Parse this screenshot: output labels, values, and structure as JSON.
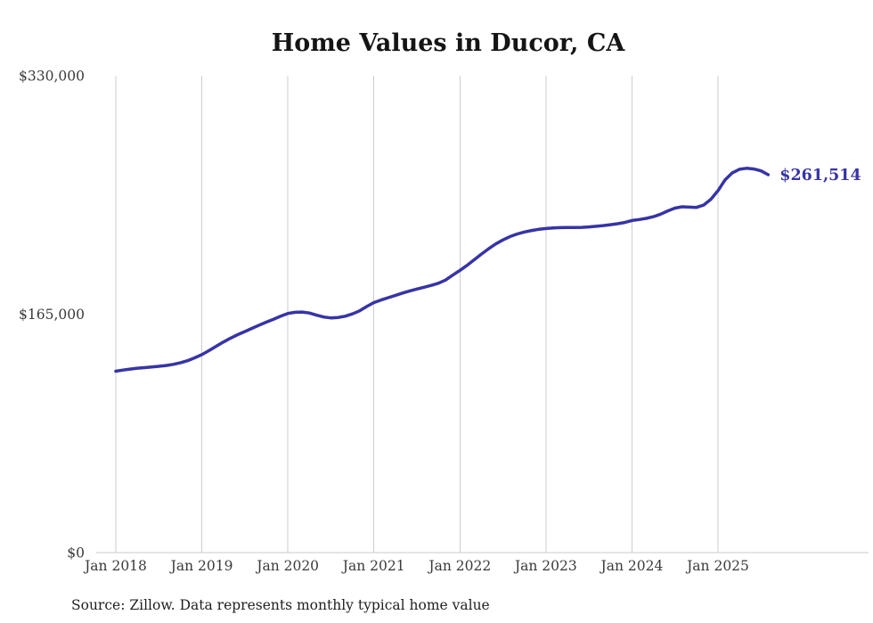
{
  "title": "Home Values in Ducor, CA",
  "source_note": "Source: Zillow. Data represents monthly typical home value",
  "chart_data": {
    "type": "line",
    "title": "Home Values in Ducor, CA",
    "xlabel": "",
    "ylabel": "",
    "ylim": [
      0,
      330000
    ],
    "y_ticks": [
      0,
      165000,
      330000
    ],
    "y_tick_labels": [
      "$0",
      "$165,000",
      "$330,000"
    ],
    "x_tick_labels": [
      "Jan 2018",
      "Jan 2019",
      "Jan 2020",
      "Jan 2021",
      "Jan 2022",
      "Jan 2023",
      "Jan 2024",
      "Jan 2025"
    ],
    "x_tick_month_indices": [
      0,
      12,
      24,
      36,
      48,
      60,
      72,
      84
    ],
    "grid": "vertical-only",
    "legend": "none",
    "line_color": "#3734a6",
    "annotation": {
      "text": "$261,514",
      "value": 261514,
      "position": "line-end"
    },
    "series": [
      {
        "name": "Monthly typical home value",
        "x_start": "2018-01",
        "frequency": "monthly",
        "values": [
          125500,
          126300,
          127000,
          127600,
          128000,
          128400,
          128900,
          129500,
          130300,
          131300,
          132800,
          134800,
          137000,
          139800,
          142800,
          145700,
          148400,
          150800,
          153000,
          155200,
          157400,
          159500,
          161500,
          163600,
          165500,
          166300,
          166500,
          165800,
          164300,
          163000,
          162400,
          162700,
          163600,
          165200,
          167300,
          170300,
          173000,
          174800,
          176400,
          178000,
          179600,
          181100,
          182400,
          183600,
          184900,
          186400,
          188600,
          192000,
          195300,
          198800,
          202700,
          206600,
          210300,
          213600,
          216400,
          218700,
          220500,
          221900,
          222900,
          223700,
          224300,
          224700,
          224900,
          225000,
          225000,
          225100,
          225400,
          225800,
          226300,
          226900,
          227600,
          228500,
          229800,
          230500,
          231300,
          232500,
          234200,
          236500,
          238400,
          239300,
          239100,
          238900,
          240500,
          244500,
          250500,
          258000,
          262800,
          265300,
          266000,
          265500,
          264200,
          261514
        ]
      }
    ]
  }
}
